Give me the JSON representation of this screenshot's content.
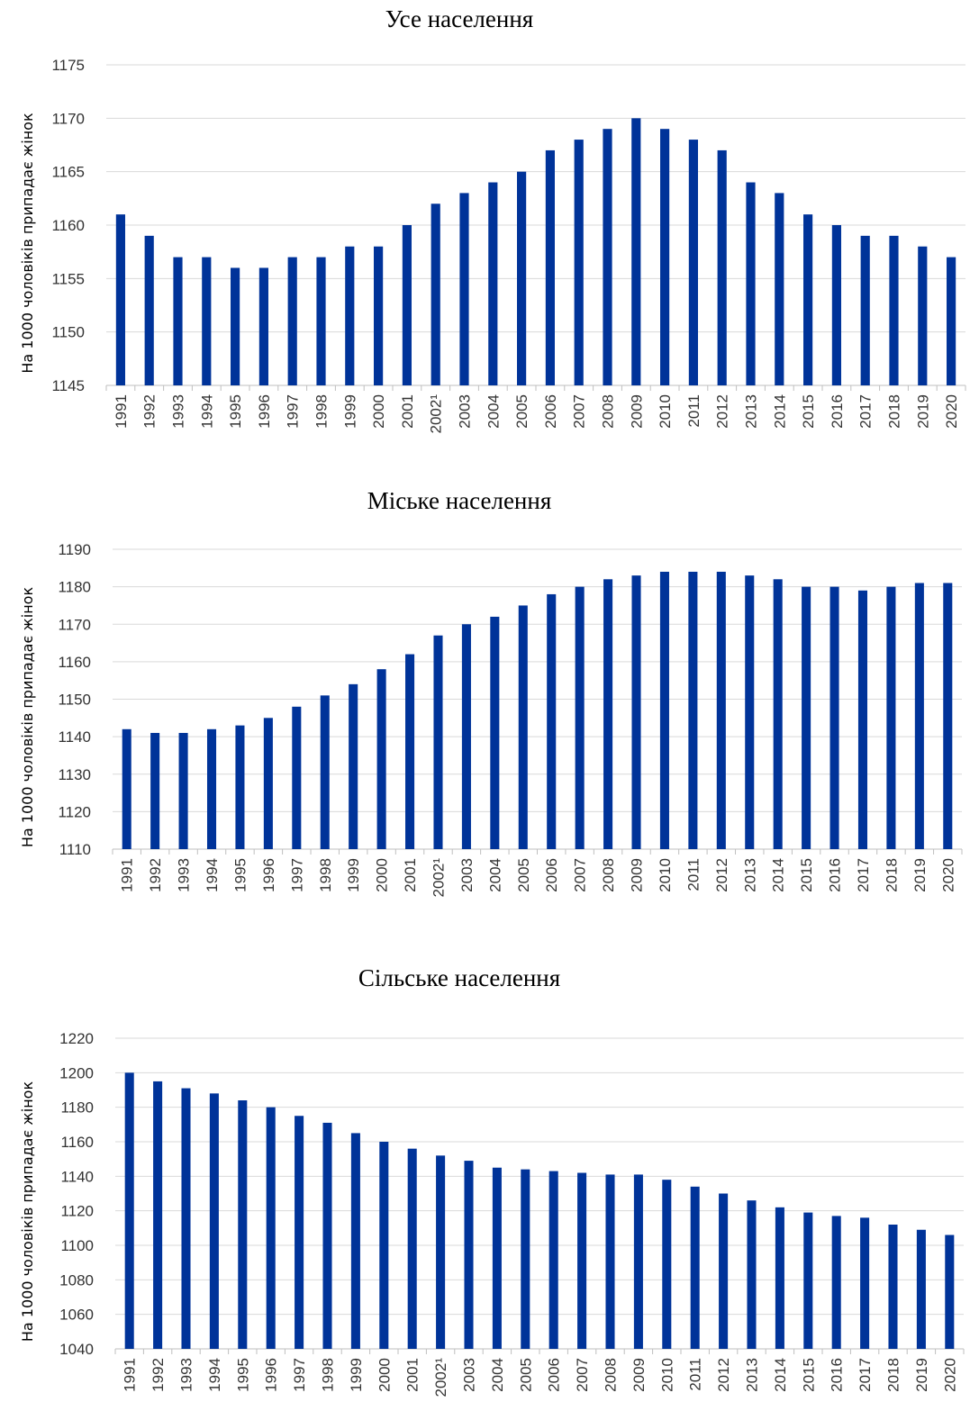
{
  "chart_data": [
    {
      "type": "bar",
      "title": "Усе населення",
      "ylabel": "На 1000 чоловіків припадає жінок",
      "xlabel": "",
      "ylim": [
        1145,
        1175
      ],
      "yticks": [
        1145,
        1150,
        1155,
        1160,
        1165,
        1170,
        1175
      ],
      "grid": true,
      "color": "#003399",
      "categories": [
        "1991",
        "1992",
        "1993",
        "1994",
        "1995",
        "1996",
        "1997",
        "1998",
        "1999",
        "2000",
        "2001",
        "2002¹",
        "2003",
        "2004",
        "2005",
        "2006",
        "2007",
        "2008",
        "2009",
        "2010",
        "2011",
        "2012",
        "2013",
        "2014",
        "2015",
        "2016",
        "2017",
        "2018",
        "2019",
        "2020"
      ],
      "values": [
        1161,
        1159,
        1157,
        1157,
        1156,
        1156,
        1157,
        1157,
        1158,
        1158,
        1160,
        1162,
        1163,
        1164,
        1165,
        1167,
        1168,
        1169,
        1170,
        1169,
        1168,
        1167,
        1164,
        1163,
        1161,
        1160,
        1159,
        1159,
        1158,
        1157
      ]
    },
    {
      "type": "bar",
      "title": "Міське населення",
      "ylabel": "На 1000 чоловіків припадає жінок",
      "xlabel": "",
      "ylim": [
        1110,
        1190
      ],
      "yticks": [
        1110,
        1120,
        1130,
        1140,
        1150,
        1160,
        1170,
        1180,
        1190
      ],
      "grid": true,
      "color": "#003399",
      "categories": [
        "1991",
        "1992",
        "1993",
        "1994",
        "1995",
        "1996",
        "1997",
        "1998",
        "1999",
        "2000",
        "2001",
        "2002¹",
        "2003",
        "2004",
        "2005",
        "2006",
        "2007",
        "2008",
        "2009",
        "2010",
        "2011",
        "2012",
        "2013",
        "2014",
        "2015",
        "2016",
        "2017",
        "2018",
        "2019",
        "2020"
      ],
      "values": [
        1142,
        1141,
        1141,
        1142,
        1143,
        1145,
        1148,
        1151,
        1154,
        1158,
        1162,
        1167,
        1170,
        1172,
        1175,
        1178,
        1180,
        1182,
        1183,
        1184,
        1184,
        1184,
        1183,
        1182,
        1180,
        1180,
        1179,
        1180,
        1181,
        1181
      ]
    },
    {
      "type": "bar",
      "title": "Сільське населення",
      "ylabel": "На 1000 чоловіків припадає жінок",
      "xlabel": "",
      "ylim": [
        1040,
        1220
      ],
      "yticks": [
        1040,
        1060,
        1080,
        1100,
        1120,
        1140,
        1160,
        1180,
        1200,
        1220
      ],
      "grid": true,
      "color": "#003399",
      "categories": [
        "1991",
        "1992",
        "1993",
        "1994",
        "1995",
        "1996",
        "1997",
        "1998",
        "1999",
        "2000",
        "2001",
        "2002¹",
        "2003",
        "2004",
        "2005",
        "2006",
        "2007",
        "2008",
        "2009",
        "2010",
        "2011",
        "2012",
        "2013",
        "2014",
        "2015",
        "2016",
        "2017",
        "2018",
        "2019",
        "2020"
      ],
      "values": [
        1200,
        1195,
        1191,
        1188,
        1184,
        1180,
        1175,
        1171,
        1165,
        1160,
        1156,
        1152,
        1149,
        1145,
        1144,
        1143,
        1142,
        1141,
        1141,
        1138,
        1134,
        1130,
        1126,
        1122,
        1119,
        1117,
        1116,
        1112,
        1109,
        1106
      ]
    }
  ]
}
